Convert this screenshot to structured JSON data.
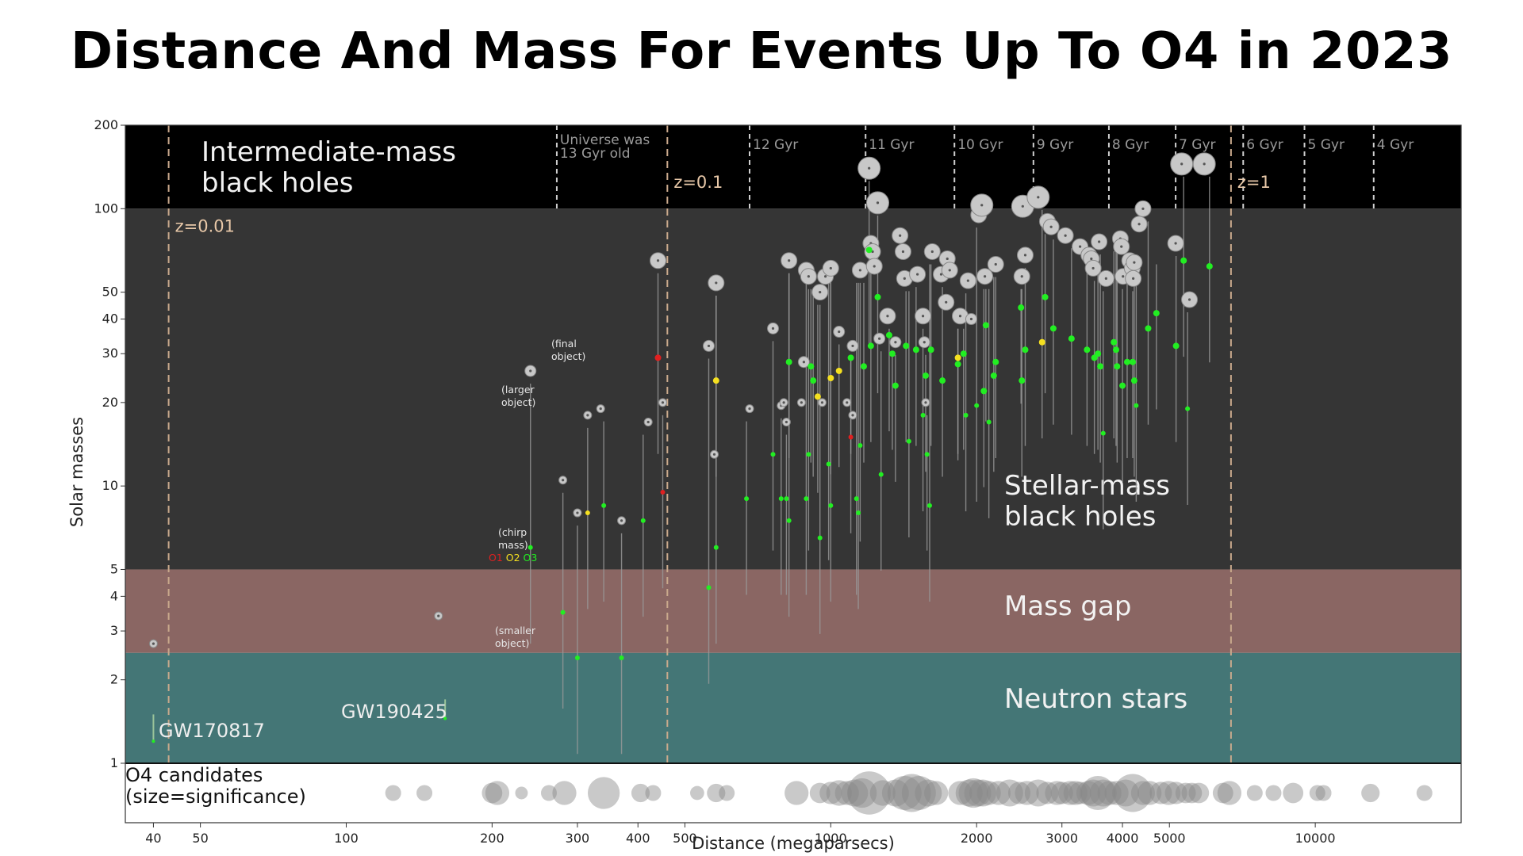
{
  "title": "Distance And Mass For Events Up To O4 in 2023",
  "colors": {
    "imbh_band": "#000000",
    "stellar_band": "#353535",
    "mass_gap_band": "#8a6663",
    "neutron_band": "#447676",
    "o4_band": "#ffffff",
    "z_line": "#c9a98c",
    "gyr_line": "#cfcfcf",
    "o1": "#e02020",
    "o2": "#f5e020",
    "o3": "#22ee22",
    "bh_marker": "#c8c8c8"
  },
  "chart_data": {
    "type": "scatter",
    "xlabel": "Distance (megaparsecs)",
    "ylabel": "Solar masses",
    "xscale": "log",
    "yscale": "log",
    "xlim": [
      35,
      20000
    ],
    "ylim": [
      1,
      200
    ],
    "xticks": [
      40,
      50,
      100,
      200,
      300,
      400,
      500,
      1000,
      2000,
      3000,
      4000,
      5000,
      10000
    ],
    "yticks": [
      1,
      2,
      3,
      4,
      5,
      10,
      20,
      30,
      40,
      50,
      100,
      200
    ],
    "grid": false,
    "regions": [
      {
        "name": "Intermediate-mass black holes",
        "line1": "Intermediate-mass",
        "line2": "black holes",
        "range": [
          100,
          200
        ]
      },
      {
        "name": "Stellar-mass black holes",
        "line1": "Stellar-mass",
        "line2": "black holes",
        "range": [
          5,
          100
        ]
      },
      {
        "name": "Mass gap",
        "line1": "Mass gap",
        "line2": "",
        "range": [
          2.5,
          5
        ]
      },
      {
        "name": "Neutron stars",
        "line1": "Neutron stars",
        "line2": "",
        "range": [
          1,
          2.5
        ]
      }
    ],
    "redshift_lines": [
      {
        "label": "z=0.01",
        "x": 43
      },
      {
        "label": "z=0.1",
        "x": 460
      },
      {
        "label": "z=1",
        "x": 6700
      }
    ],
    "lookback_lines": [
      {
        "label": "Universe was 13 Gyr old",
        "line1": "Universe was",
        "line2": "13 Gyr old",
        "x": 272
      },
      {
        "label": "12 Gyr",
        "x": 680
      },
      {
        "label": "11 Gyr",
        "x": 1180
      },
      {
        "label": "10 Gyr",
        "x": 1800
      },
      {
        "label": "9 Gyr",
        "x": 2620
      },
      {
        "label": "8 Gyr",
        "x": 3750
      },
      {
        "label": "7 Gyr",
        "x": 5150
      },
      {
        "label": "6 Gyr",
        "x": 7100
      },
      {
        "label": "5 Gyr",
        "x": 9500
      },
      {
        "label": "4 Gyr",
        "x": 13200
      }
    ],
    "annotations": {
      "final_object": [
        "(final",
        "object)"
      ],
      "larger_object": [
        "(larger",
        "object)"
      ],
      "chirp_mass": [
        "(chirp",
        "mass)"
      ],
      "smaller_object": [
        "(smaller",
        "object)"
      ],
      "run_key": [
        {
          "label": "O1",
          "color": "#e02020"
        },
        {
          "label": "O2",
          "color": "#f5e020"
        },
        {
          "label": "O3",
          "color": "#22ee22"
        }
      ]
    },
    "named_events": [
      {
        "name": "GW170817",
        "x": 40,
        "mass_range": [
          1.2,
          1.5
        ]
      },
      {
        "name": "GW190425",
        "x": 160,
        "mass_range": [
          1.45,
          1.7
        ]
      }
    ],
    "series": [
      {
        "name": "Final object",
        "marker": "large gray circle",
        "points": [
          [
            40,
            2.7
          ],
          [
            155,
            3.4
          ],
          [
            240,
            26
          ],
          [
            280,
            10.5
          ],
          [
            300,
            8
          ],
          [
            315,
            18
          ],
          [
            335,
            19
          ],
          [
            370,
            7.5
          ],
          [
            420,
            17
          ],
          [
            440,
            65
          ],
          [
            450,
            20
          ],
          [
            560,
            32
          ],
          [
            575,
            13
          ],
          [
            580,
            54
          ],
          [
            680,
            19
          ],
          [
            760,
            37
          ],
          [
            790,
            19.5
          ],
          [
            800,
            20
          ],
          [
            810,
            17
          ],
          [
            820,
            65
          ],
          [
            870,
            20
          ],
          [
            880,
            28
          ],
          [
            890,
            60
          ],
          [
            900,
            57
          ],
          [
            950,
            50
          ],
          [
            960,
            20
          ],
          [
            975,
            57
          ],
          [
            1000,
            61
          ],
          [
            1040,
            36
          ],
          [
            1080,
            20
          ],
          [
            1110,
            32
          ],
          [
            1110,
            18
          ],
          [
            1150,
            60
          ],
          [
            1200,
            140
          ],
          [
            1210,
            75
          ],
          [
            1220,
            70
          ],
          [
            1230,
            62
          ],
          [
            1250,
            105
          ],
          [
            1260,
            34
          ],
          [
            1310,
            41
          ],
          [
            1360,
            33
          ],
          [
            1390,
            80
          ],
          [
            1410,
            70
          ],
          [
            1420,
            56
          ],
          [
            1510,
            58
          ],
          [
            1550,
            41
          ],
          [
            1560,
            33
          ],
          [
            1570,
            20
          ],
          [
            1620,
            70
          ],
          [
            1690,
            58
          ],
          [
            1730,
            46
          ],
          [
            1740,
            66
          ],
          [
            1760,
            60
          ],
          [
            1850,
            41
          ],
          [
            1920,
            55
          ],
          [
            1950,
            40
          ],
          [
            2020,
            95
          ],
          [
            2050,
            103
          ],
          [
            2080,
            57
          ],
          [
            2190,
            63
          ],
          [
            2480,
            57
          ],
          [
            2490,
            102
          ],
          [
            2520,
            68
          ],
          [
            2680,
            110
          ],
          [
            2800,
            90
          ],
          [
            2850,
            86
          ],
          [
            3050,
            80
          ],
          [
            3270,
            73
          ],
          [
            3410,
            68
          ],
          [
            3450,
            66
          ],
          [
            3480,
            61
          ],
          [
            3580,
            76
          ],
          [
            3700,
            56
          ],
          [
            3960,
            78
          ],
          [
            3980,
            73
          ],
          [
            4010,
            57
          ],
          [
            4140,
            65
          ],
          [
            4190,
            61
          ],
          [
            4210,
            56
          ],
          [
            4230,
            64
          ],
          [
            4330,
            88
          ],
          [
            4410,
            100
          ],
          [
            5150,
            75
          ],
          [
            5300,
            145
          ],
          [
            5500,
            47
          ],
          [
            5900,
            145
          ]
        ]
      },
      {
        "name": "Chirp mass O1",
        "marker": "small red dot",
        "points": [
          [
            440,
            29
          ],
          [
            450,
            9.5
          ],
          [
            1100,
            15
          ]
        ]
      },
      {
        "name": "Chirp mass O2",
        "marker": "small yellow dot",
        "points": [
          [
            315,
            8
          ],
          [
            580,
            24
          ],
          [
            940,
            21
          ],
          [
            1000,
            24.5
          ],
          [
            1040,
            26
          ],
          [
            1830,
            29
          ],
          [
            2730,
            33
          ]
        ]
      },
      {
        "name": "Chirp mass O3",
        "marker": "small green dot",
        "points": [
          [
            240,
            6
          ],
          [
            280,
            3.5
          ],
          [
            300,
            2.4
          ],
          [
            340,
            8.5
          ],
          [
            370,
            2.4
          ],
          [
            410,
            7.5
          ],
          [
            560,
            4.3
          ],
          [
            580,
            6
          ],
          [
            670,
            9
          ],
          [
            760,
            13
          ],
          [
            790,
            9
          ],
          [
            810,
            9
          ],
          [
            820,
            7.5
          ],
          [
            820,
            28
          ],
          [
            890,
            9
          ],
          [
            900,
            13
          ],
          [
            910,
            27
          ],
          [
            920,
            24
          ],
          [
            950,
            6.5
          ],
          [
            990,
            12
          ],
          [
            1000,
            8.5
          ],
          [
            1100,
            29
          ],
          [
            1130,
            9
          ],
          [
            1140,
            8
          ],
          [
            1150,
            14
          ],
          [
            1170,
            27
          ],
          [
            1200,
            71
          ],
          [
            1210,
            32
          ],
          [
            1250,
            48
          ],
          [
            1270,
            11
          ],
          [
            1320,
            35
          ],
          [
            1340,
            30
          ],
          [
            1360,
            23
          ],
          [
            1430,
            32
          ],
          [
            1450,
            14.5
          ],
          [
            1500,
            31
          ],
          [
            1550,
            18
          ],
          [
            1570,
            25
          ],
          [
            1580,
            13
          ],
          [
            1600,
            8.5
          ],
          [
            1610,
            31
          ],
          [
            1700,
            24
          ],
          [
            1830,
            27.5
          ],
          [
            1880,
            30
          ],
          [
            1900,
            18
          ],
          [
            2000,
            19.5
          ],
          [
            2070,
            22
          ],
          [
            2090,
            38
          ],
          [
            2120,
            17
          ],
          [
            2170,
            25
          ],
          [
            2190,
            28
          ],
          [
            2470,
            44
          ],
          [
            2480,
            24
          ],
          [
            2520,
            31
          ],
          [
            2770,
            48
          ],
          [
            2880,
            37
          ],
          [
            3140,
            34
          ],
          [
            3380,
            31
          ],
          [
            3500,
            29
          ],
          [
            3560,
            30
          ],
          [
            3600,
            27
          ],
          [
            3650,
            15.5
          ],
          [
            3840,
            33
          ],
          [
            3880,
            31
          ],
          [
            3900,
            27
          ],
          [
            4000,
            23
          ],
          [
            4090,
            28
          ],
          [
            4200,
            28
          ],
          [
            4230,
            24
          ],
          [
            4270,
            19.5
          ],
          [
            4520,
            37
          ],
          [
            4700,
            42
          ],
          [
            5160,
            32
          ],
          [
            5350,
            65
          ],
          [
            5450,
            19
          ],
          [
            6050,
            62
          ]
        ]
      },
      {
        "name": "O4 candidates",
        "marker": "gray circle, size=significance",
        "significance": [
          [
            125,
            1
          ],
          [
            145,
            1
          ],
          [
            200,
            2
          ],
          [
            205,
            3
          ],
          [
            230,
            0.5
          ],
          [
            262,
            1
          ],
          [
            282,
            3
          ],
          [
            340,
            6
          ],
          [
            405,
            1.5
          ],
          [
            430,
            1
          ],
          [
            530,
            0.7
          ],
          [
            580,
            1.5
          ],
          [
            610,
            1
          ],
          [
            850,
            3
          ],
          [
            950,
            2
          ],
          [
            1000,
            2.5
          ],
          [
            1040,
            3.5
          ],
          [
            1080,
            3
          ],
          [
            1120,
            4
          ],
          [
            1160,
            5
          ],
          [
            1200,
            12
          ],
          [
            1280,
            3.5
          ],
          [
            1360,
            4
          ],
          [
            1420,
            7
          ],
          [
            1470,
            9
          ],
          [
            1520,
            7
          ],
          [
            1590,
            4
          ],
          [
            1650,
            3
          ],
          [
            1850,
            3
          ],
          [
            1930,
            4
          ],
          [
            1970,
            5
          ],
          [
            2010,
            4
          ],
          [
            2060,
            4
          ],
          [
            2120,
            3
          ],
          [
            2220,
            3
          ],
          [
            2340,
            4
          ],
          [
            2450,
            2.5
          ],
          [
            2540,
            3
          ],
          [
            2680,
            4
          ],
          [
            2800,
            2.5
          ],
          [
            2930,
            3
          ],
          [
            3000,
            2.5
          ],
          [
            3120,
            3
          ],
          [
            3200,
            3
          ],
          [
            3270,
            2.5
          ],
          [
            3400,
            3
          ],
          [
            3480,
            4
          ],
          [
            3560,
            7
          ],
          [
            3650,
            4
          ],
          [
            3760,
            3
          ],
          [
            3890,
            3
          ],
          [
            4060,
            4
          ],
          [
            4200,
            9
          ],
          [
            4410,
            3
          ],
          [
            4550,
            3
          ],
          [
            4800,
            2.5
          ],
          [
            4980,
            3
          ],
          [
            5160,
            2.5
          ],
          [
            5400,
            2
          ],
          [
            5560,
            2
          ],
          [
            5750,
            2
          ],
          [
            6450,
            2
          ],
          [
            6650,
            3
          ],
          [
            7500,
            1
          ],
          [
            8200,
            1
          ],
          [
            9000,
            2
          ],
          [
            10100,
            1
          ],
          [
            10400,
            1
          ],
          [
            13000,
            1.5
          ],
          [
            16800,
            1
          ]
        ],
        "label_line1": "O4 candidates",
        "label_line2": "(size=significance)"
      }
    ]
  }
}
